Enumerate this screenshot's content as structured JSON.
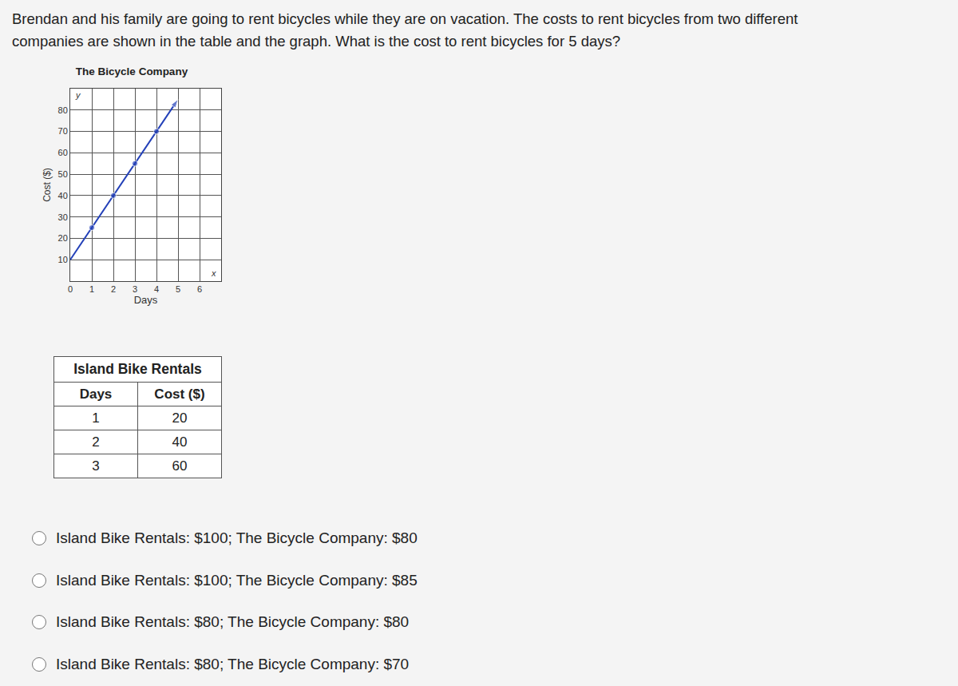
{
  "question": {
    "lines": [
      "Brendan and his family are going to rent bicycles while they are on vacation. The costs to rent bicycles from two different",
      "companies are shown in the table and the graph. What is the cost to rent bicycles for 5 days?"
    ]
  },
  "chart_data": {
    "type": "line",
    "title": "The Bicycle Company",
    "x_label": "Days",
    "y_label": "Cost ($)",
    "x": [
      0,
      1,
      2,
      3,
      4,
      5
    ],
    "values": [
      10,
      25,
      40,
      55,
      70,
      85
    ],
    "color": "#2340b8",
    "marker": "circle",
    "xlim": [
      0,
      7
    ],
    "ylim": [
      0,
      90
    ],
    "xticks": [
      0,
      1,
      2,
      3,
      4,
      5,
      6
    ],
    "yticks": [
      10,
      20,
      30,
      40,
      50,
      60,
      70,
      80
    ],
    "grid": true
  },
  "axis_letters": {
    "x": "x",
    "y": "y"
  },
  "table": {
    "title": "Island Bike Rentals",
    "columns": [
      "Days",
      "Cost ($)"
    ],
    "rows": [
      [
        1,
        20
      ],
      [
        2,
        40
      ],
      [
        3,
        60
      ]
    ]
  },
  "options": [
    "Island Bike Rentals: $100; The Bicycle Company: $80",
    "Island Bike Rentals: $100; The Bicycle Company: $85",
    "Island Bike Rentals: $80; The Bicycle Company: $80",
    "Island Bike Rentals: $80; The Bicycle Company: $70"
  ]
}
